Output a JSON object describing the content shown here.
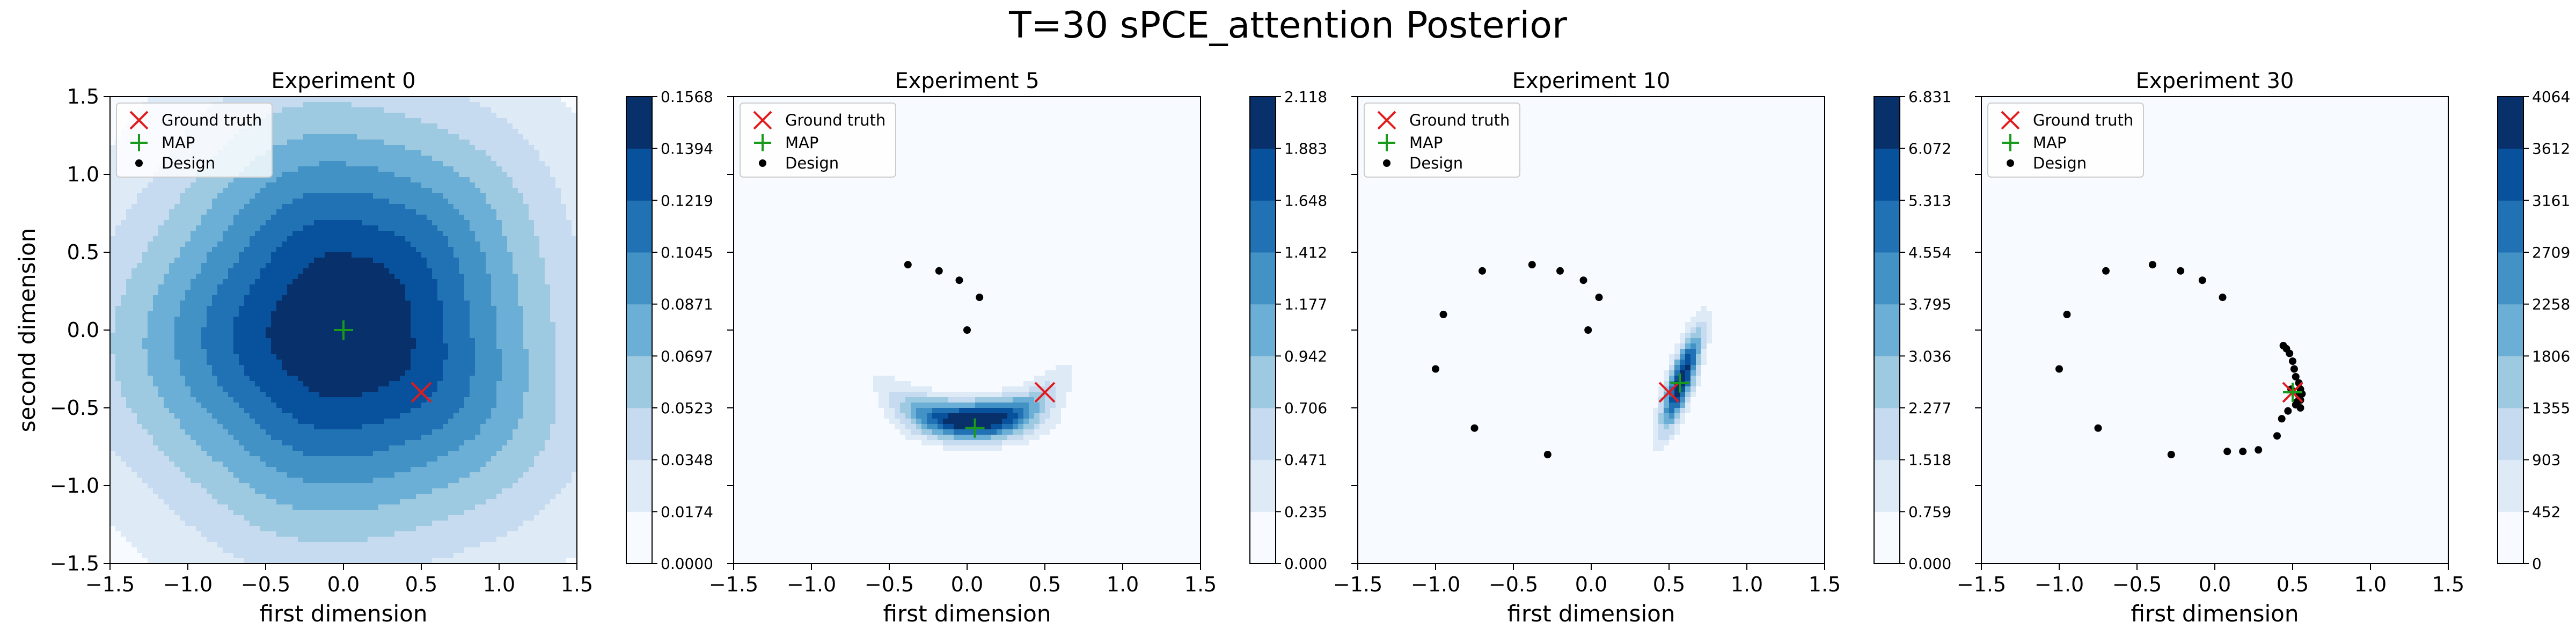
{
  "suptitle": "T=30 sPCE_attention Posterior",
  "legend": {
    "ground_truth": "Ground truth",
    "map": "MAP",
    "design": "Design"
  },
  "colors": {
    "ground_truth": "#e31a1c",
    "map": "#1a9a1a",
    "design": "#000000",
    "cmap": [
      "#f7fbff",
      "#deebf7",
      "#c6dbef",
      "#9ecae1",
      "#6baed6",
      "#4292c6",
      "#2171b5",
      "#08519c",
      "#08306b"
    ]
  },
  "chart_data": [
    {
      "type": "contour",
      "title": "Experiment 0",
      "xlabel": "first dimension",
      "ylabel": "second dimension",
      "xlim": [
        -1.5,
        1.5
      ],
      "ylim": [
        -1.5,
        1.5
      ],
      "xticks": [
        "−1.5",
        "−1.0",
        "−0.5",
        "0.0",
        "0.5",
        "1.0",
        "1.5"
      ],
      "yticks": [
        "−1.5",
        "−1.0",
        "−0.5",
        "0.0",
        "0.5",
        "1.0",
        "1.5"
      ],
      "colorbar_ticks": [
        "0.0000",
        "0.0174",
        "0.0348",
        "0.0523",
        "0.0697",
        "0.0871",
        "0.1045",
        "0.1219",
        "0.1394",
        "0.1568"
      ],
      "colorbar_max": 0.1568,
      "ground_truth": [
        0.5,
        -0.4
      ],
      "map": [
        0.0,
        0.0
      ],
      "designs": [],
      "density": {
        "center": [
          0.0,
          0.02
        ],
        "sx": 0.95,
        "sy": 0.95,
        "rho": 0.0,
        "wobble": 0.07
      }
    },
    {
      "type": "contour",
      "title": "Experiment 5",
      "xlabel": "first dimension",
      "ylabel": "",
      "xlim": [
        -1.5,
        1.5
      ],
      "ylim": [
        -1.5,
        1.5
      ],
      "xticks": [
        "−1.5",
        "−1.0",
        "−0.5",
        "0.0",
        "0.5",
        "1.0",
        "1.5"
      ],
      "yticks": [],
      "colorbar_ticks": [
        "0.000",
        "0.235",
        "0.471",
        "0.706",
        "0.942",
        "1.177",
        "1.412",
        "1.648",
        "1.883",
        "2.118"
      ],
      "colorbar_max": 2.118,
      "ground_truth": [
        0.5,
        -0.4
      ],
      "map": [
        0.05,
        -0.63
      ],
      "designs": [
        [
          -0.38,
          0.42
        ],
        [
          -0.18,
          0.38
        ],
        [
          -0.05,
          0.32
        ],
        [
          0.08,
          0.21
        ],
        [
          0.0,
          0.0
        ]
      ],
      "density": {
        "arc": true
      }
    },
    {
      "type": "contour",
      "title": "Experiment 10",
      "xlabel": "first dimension",
      "ylabel": "",
      "xlim": [
        -1.5,
        1.5
      ],
      "ylim": [
        -1.5,
        1.5
      ],
      "xticks": [
        "−1.5",
        "−1.0",
        "−0.5",
        "0.0",
        "0.5",
        "1.0",
        "1.5"
      ],
      "yticks": [],
      "colorbar_ticks": [
        "0.000",
        "0.759",
        "1.518",
        "2.277",
        "3.036",
        "3.795",
        "4.554",
        "5.313",
        "6.072",
        "6.831"
      ],
      "colorbar_max": 6.831,
      "ground_truth": [
        0.5,
        -0.4
      ],
      "map": [
        0.57,
        -0.34
      ],
      "designs": [
        [
          -0.7,
          0.38
        ],
        [
          -0.38,
          0.42
        ],
        [
          -0.2,
          0.38
        ],
        [
          -0.05,
          0.32
        ],
        [
          0.05,
          0.21
        ],
        [
          -0.02,
          0.0
        ],
        [
          -0.95,
          0.1
        ],
        [
          -1.0,
          -0.25
        ],
        [
          -0.75,
          -0.63
        ],
        [
          -0.28,
          -0.8
        ]
      ],
      "density": {
        "center": [
          0.58,
          -0.32
        ],
        "sx": 0.09,
        "sy": 0.22,
        "rho": 0.78,
        "wobble": 0.0
      }
    },
    {
      "type": "contour",
      "title": "Experiment 30",
      "xlabel": "first dimension",
      "ylabel": "",
      "xlim": [
        -1.5,
        1.5
      ],
      "ylim": [
        -1.5,
        1.5
      ],
      "xticks": [
        "−1.5",
        "−1.0",
        "−0.5",
        "0.0",
        "0.5",
        "1.0",
        "1.5"
      ],
      "yticks": [],
      "colorbar_ticks": [
        "0",
        "452",
        "903",
        "1355",
        "1806",
        "2258",
        "2709",
        "3161",
        "3612",
        "4064"
      ],
      "colorbar_max": 4064,
      "ground_truth": [
        0.5,
        -0.4
      ],
      "map": [
        0.5,
        -0.4
      ],
      "designs": [
        [
          -0.7,
          0.38
        ],
        [
          -0.4,
          0.42
        ],
        [
          -0.22,
          0.38
        ],
        [
          -0.08,
          0.32
        ],
        [
          0.05,
          0.21
        ],
        [
          -0.95,
          0.1
        ],
        [
          -1.0,
          -0.25
        ],
        [
          -0.75,
          -0.63
        ],
        [
          -0.28,
          -0.8
        ],
        [
          0.08,
          -0.78
        ],
        [
          0.18,
          -0.78
        ],
        [
          0.28,
          -0.77
        ],
        [
          0.4,
          -0.68
        ],
        [
          0.43,
          -0.57
        ],
        [
          0.47,
          -0.52
        ],
        [
          0.52,
          -0.48
        ],
        [
          0.55,
          -0.45
        ],
        [
          0.54,
          -0.42
        ],
        [
          0.55,
          -0.38
        ],
        [
          0.54,
          -0.34
        ],
        [
          0.52,
          -0.3
        ],
        [
          0.51,
          -0.25
        ],
        [
          0.5,
          -0.2
        ],
        [
          0.48,
          -0.15
        ],
        [
          0.46,
          -0.12
        ],
        [
          0.44,
          -0.1
        ],
        [
          0.55,
          -0.5
        ],
        [
          0.53,
          -0.46
        ],
        [
          0.56,
          -0.41
        ],
        [
          0.49,
          -0.38
        ]
      ],
      "density": {
        "center": [
          0.5,
          -0.4
        ],
        "sx": 0.012,
        "sy": 0.012,
        "rho": 0.0,
        "wobble": 0.0
      }
    }
  ]
}
